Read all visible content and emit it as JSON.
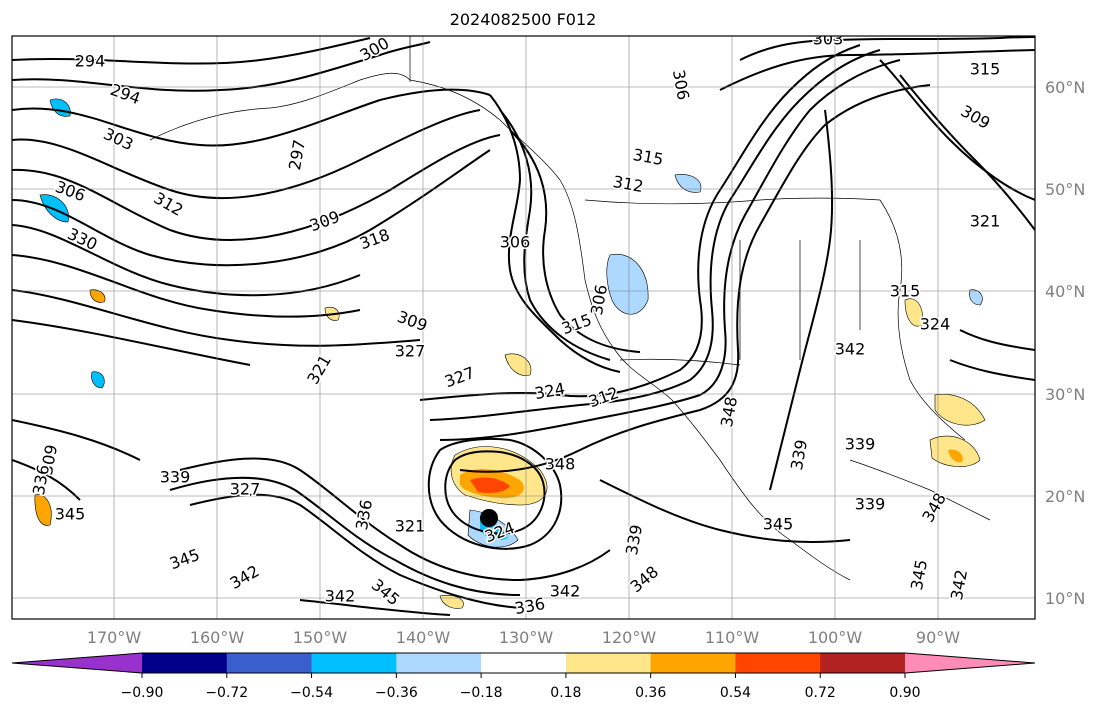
{
  "title": "2024082500 F012",
  "map": {
    "lon_ticks": [
      "170°W",
      "160°W",
      "150°W",
      "140°W",
      "130°W",
      "120°W",
      "110°W",
      "100°W",
      "90°W"
    ],
    "lat_ticks": [
      "60°N",
      "50°N",
      "40°N",
      "30°N",
      "20°N",
      "10°N"
    ],
    "contour_labels": [
      "294",
      "294",
      "300",
      "303",
      "306",
      "312",
      "330",
      "297",
      "309",
      "318",
      "315",
      "312",
      "306",
      "306",
      "315",
      "309",
      "327",
      "321",
      "327",
      "324",
      "312",
      "309",
      "336",
      "339",
      "327",
      "345",
      "336",
      "321",
      "324",
      "348",
      "339",
      "348",
      "345",
      "342",
      "342",
      "345",
      "336",
      "342",
      "348",
      "339",
      "339",
      "342",
      "345",
      "339",
      "348",
      "345",
      "342",
      "303",
      "306",
      "315",
      "309",
      "321",
      "315",
      "324"
    ],
    "shading_colors": [
      "#9932cc",
      "#00008b",
      "#3a5fcd",
      "#00bfff",
      "#add8ff",
      "#ffffff",
      "#ffe68a",
      "#ffa500",
      "#ff4500",
      "#b22222",
      "#ff8cb4"
    ]
  },
  "colorbar": {
    "tick_labels": [
      "−0.90",
      "−0.72",
      "−0.54",
      "−0.36",
      "−0.18",
      "0.18",
      "0.36",
      "0.54",
      "0.72",
      "0.90"
    ],
    "colors": [
      "#9932cc",
      "#00008b",
      "#3a5fcd",
      "#00bfff",
      "#add8ff",
      "#ffffff",
      "#ffe68a",
      "#ffa500",
      "#ff4500",
      "#b22222",
      "#ff8cb4"
    ]
  }
}
